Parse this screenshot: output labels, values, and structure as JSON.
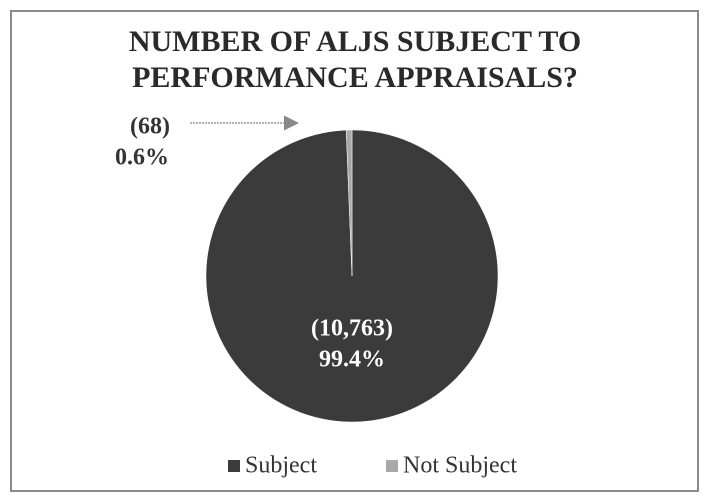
{
  "chart_data": {
    "type": "pie",
    "title": "NUMBER OF ALJS SUBJECT TO PERFORMANCE APPRAISALS?",
    "categories": [
      "Subject",
      "Not Subject"
    ],
    "values": [
      10763,
      68
    ],
    "value_labels": [
      "(10,763)",
      "(68)"
    ],
    "percent_labels": [
      "99.4%",
      "0.6%"
    ],
    "colors": [
      "#3b3b3b",
      "#a9a9a9"
    ],
    "legend": "bottom"
  }
}
